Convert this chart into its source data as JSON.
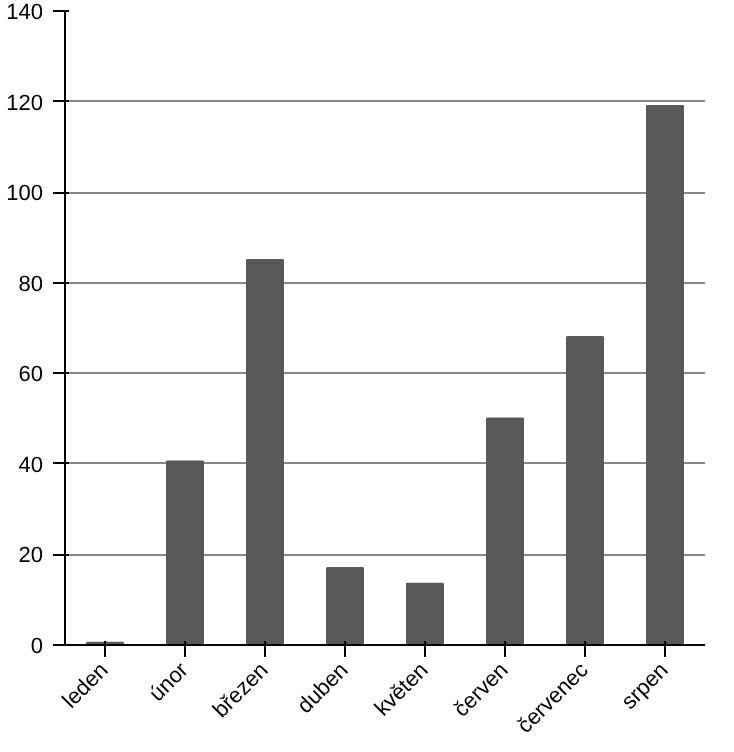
{
  "chart_data": {
    "type": "bar",
    "categories": [
      "leden",
      "únor",
      "březen",
      "duben",
      "květen",
      "červen",
      "červenec",
      "srpen"
    ],
    "values": [
      0.5,
      40.5,
      85,
      17,
      13.5,
      50,
      68,
      119
    ],
    "color": "#595959",
    "ylim": [
      0,
      140
    ],
    "yticks": [
      0,
      20,
      40,
      60,
      80,
      100,
      120,
      140
    ],
    "grid": "y"
  }
}
